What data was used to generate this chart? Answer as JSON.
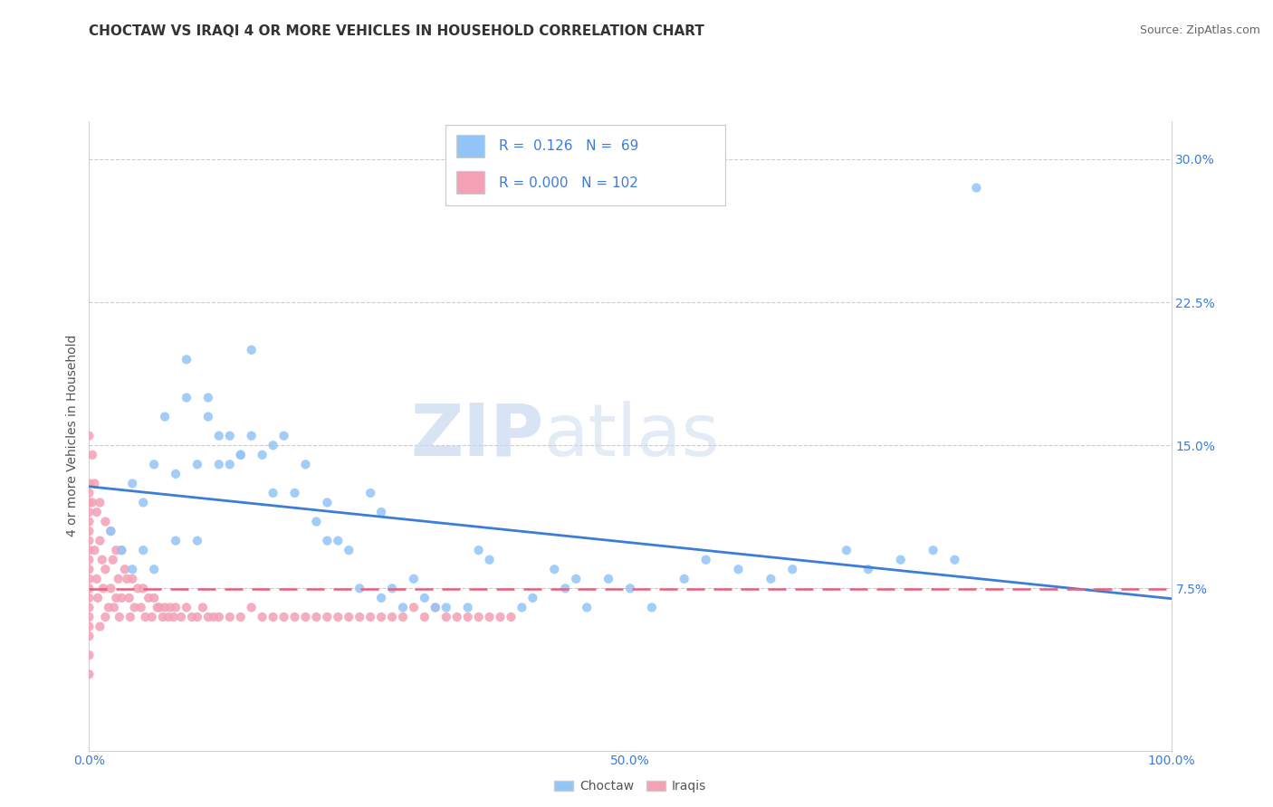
{
  "title": "CHOCTAW VS IRAQI 4 OR MORE VEHICLES IN HOUSEHOLD CORRELATION CHART",
  "source": "Source: ZipAtlas.com",
  "ylabel": "4 or more Vehicles in Household",
  "watermark_zip": "ZIP",
  "watermark_atlas": "atlas",
  "choctaw_R": "0.126",
  "choctaw_N": "69",
  "iraqi_R": "0.000",
  "iraqi_N": "102",
  "xlim": [
    0.0,
    1.0
  ],
  "ylim": [
    -0.01,
    0.32
  ],
  "ytick_vals": [
    0.0,
    0.075,
    0.15,
    0.225,
    0.3
  ],
  "ytick_labels": [
    "",
    "7.5%",
    "15.0%",
    "22.5%",
    "30.0%"
  ],
  "xtick_vals": [
    0.0,
    0.5,
    1.0
  ],
  "xtick_labels": [
    "0.0%",
    "50.0%",
    "100.0%"
  ],
  "choctaw_color": "#92C5F7",
  "iraqi_color": "#F4A0B5",
  "choctaw_line_color": "#3B7DD8",
  "iraqi_line_color": "#E8607A",
  "grid_color": "#CCCCCC",
  "background_color": "#FFFFFF",
  "tick_color": "#3B7DD8",
  "title_color": "#333333",
  "source_color": "#666666",
  "ylabel_color": "#555555",
  "legend_text_color": "#3B7DD8",
  "legend_border_color": "#CCCCCC",
  "choctaw_x": [
    0.02,
    0.03,
    0.04,
    0.04,
    0.05,
    0.05,
    0.06,
    0.06,
    0.07,
    0.08,
    0.08,
    0.09,
    0.09,
    0.1,
    0.1,
    0.11,
    0.11,
    0.12,
    0.12,
    0.13,
    0.13,
    0.14,
    0.14,
    0.15,
    0.15,
    0.16,
    0.17,
    0.17,
    0.18,
    0.19,
    0.2,
    0.21,
    0.22,
    0.22,
    0.23,
    0.24,
    0.25,
    0.26,
    0.27,
    0.27,
    0.28,
    0.29,
    0.3,
    0.31,
    0.32,
    0.33,
    0.35,
    0.36,
    0.37,
    0.4,
    0.41,
    0.43,
    0.44,
    0.45,
    0.46,
    0.48,
    0.5,
    0.52,
    0.55,
    0.57,
    0.6,
    0.63,
    0.65,
    0.7,
    0.72,
    0.75,
    0.78,
    0.8,
    0.82
  ],
  "choctaw_y": [
    0.105,
    0.095,
    0.13,
    0.085,
    0.12,
    0.095,
    0.14,
    0.085,
    0.165,
    0.135,
    0.1,
    0.195,
    0.175,
    0.14,
    0.1,
    0.175,
    0.165,
    0.155,
    0.14,
    0.155,
    0.14,
    0.145,
    0.145,
    0.2,
    0.155,
    0.145,
    0.15,
    0.125,
    0.155,
    0.125,
    0.14,
    0.11,
    0.12,
    0.1,
    0.1,
    0.095,
    0.075,
    0.125,
    0.115,
    0.07,
    0.075,
    0.065,
    0.08,
    0.07,
    0.065,
    0.065,
    0.065,
    0.095,
    0.09,
    0.065,
    0.07,
    0.085,
    0.075,
    0.08,
    0.065,
    0.08,
    0.075,
    0.065,
    0.08,
    0.09,
    0.085,
    0.08,
    0.085,
    0.095,
    0.085,
    0.09,
    0.095,
    0.09,
    0.285
  ],
  "iraqi_x": [
    0.0,
    0.0,
    0.0,
    0.0,
    0.0,
    0.0,
    0.0,
    0.0,
    0.0,
    0.0,
    0.0,
    0.0,
    0.0,
    0.0,
    0.0,
    0.0,
    0.0,
    0.0,
    0.0,
    0.0,
    0.003,
    0.003,
    0.005,
    0.005,
    0.007,
    0.007,
    0.008,
    0.01,
    0.01,
    0.01,
    0.012,
    0.013,
    0.015,
    0.015,
    0.015,
    0.018,
    0.02,
    0.02,
    0.022,
    0.023,
    0.025,
    0.025,
    0.027,
    0.028,
    0.03,
    0.03,
    0.033,
    0.035,
    0.037,
    0.038,
    0.04,
    0.042,
    0.045,
    0.048,
    0.05,
    0.052,
    0.055,
    0.058,
    0.06,
    0.063,
    0.065,
    0.068,
    0.07,
    0.073,
    0.075,
    0.078,
    0.08,
    0.085,
    0.09,
    0.095,
    0.1,
    0.105,
    0.11,
    0.115,
    0.12,
    0.13,
    0.14,
    0.15,
    0.16,
    0.17,
    0.18,
    0.19,
    0.2,
    0.21,
    0.22,
    0.23,
    0.24,
    0.25,
    0.26,
    0.27,
    0.28,
    0.29,
    0.3,
    0.31,
    0.32,
    0.33,
    0.34,
    0.35,
    0.36,
    0.37,
    0.38,
    0.39
  ],
  "iraqi_y": [
    0.155,
    0.13,
    0.125,
    0.12,
    0.115,
    0.11,
    0.105,
    0.1,
    0.095,
    0.09,
    0.085,
    0.08,
    0.075,
    0.07,
    0.065,
    0.06,
    0.055,
    0.05,
    0.04,
    0.03,
    0.145,
    0.12,
    0.13,
    0.095,
    0.115,
    0.08,
    0.07,
    0.12,
    0.1,
    0.055,
    0.09,
    0.075,
    0.11,
    0.085,
    0.06,
    0.065,
    0.105,
    0.075,
    0.09,
    0.065,
    0.095,
    0.07,
    0.08,
    0.06,
    0.095,
    0.07,
    0.085,
    0.08,
    0.07,
    0.06,
    0.08,
    0.065,
    0.075,
    0.065,
    0.075,
    0.06,
    0.07,
    0.06,
    0.07,
    0.065,
    0.065,
    0.06,
    0.065,
    0.06,
    0.065,
    0.06,
    0.065,
    0.06,
    0.065,
    0.06,
    0.06,
    0.065,
    0.06,
    0.06,
    0.06,
    0.06,
    0.06,
    0.065,
    0.06,
    0.06,
    0.06,
    0.06,
    0.06,
    0.06,
    0.06,
    0.06,
    0.06,
    0.06,
    0.06,
    0.06,
    0.06,
    0.06,
    0.065,
    0.06,
    0.065,
    0.06,
    0.06,
    0.06,
    0.06,
    0.06,
    0.06,
    0.06
  ],
  "title_fontsize": 11,
  "source_fontsize": 9,
  "tick_fontsize": 10,
  "ylabel_fontsize": 10,
  "legend_fontsize": 11
}
